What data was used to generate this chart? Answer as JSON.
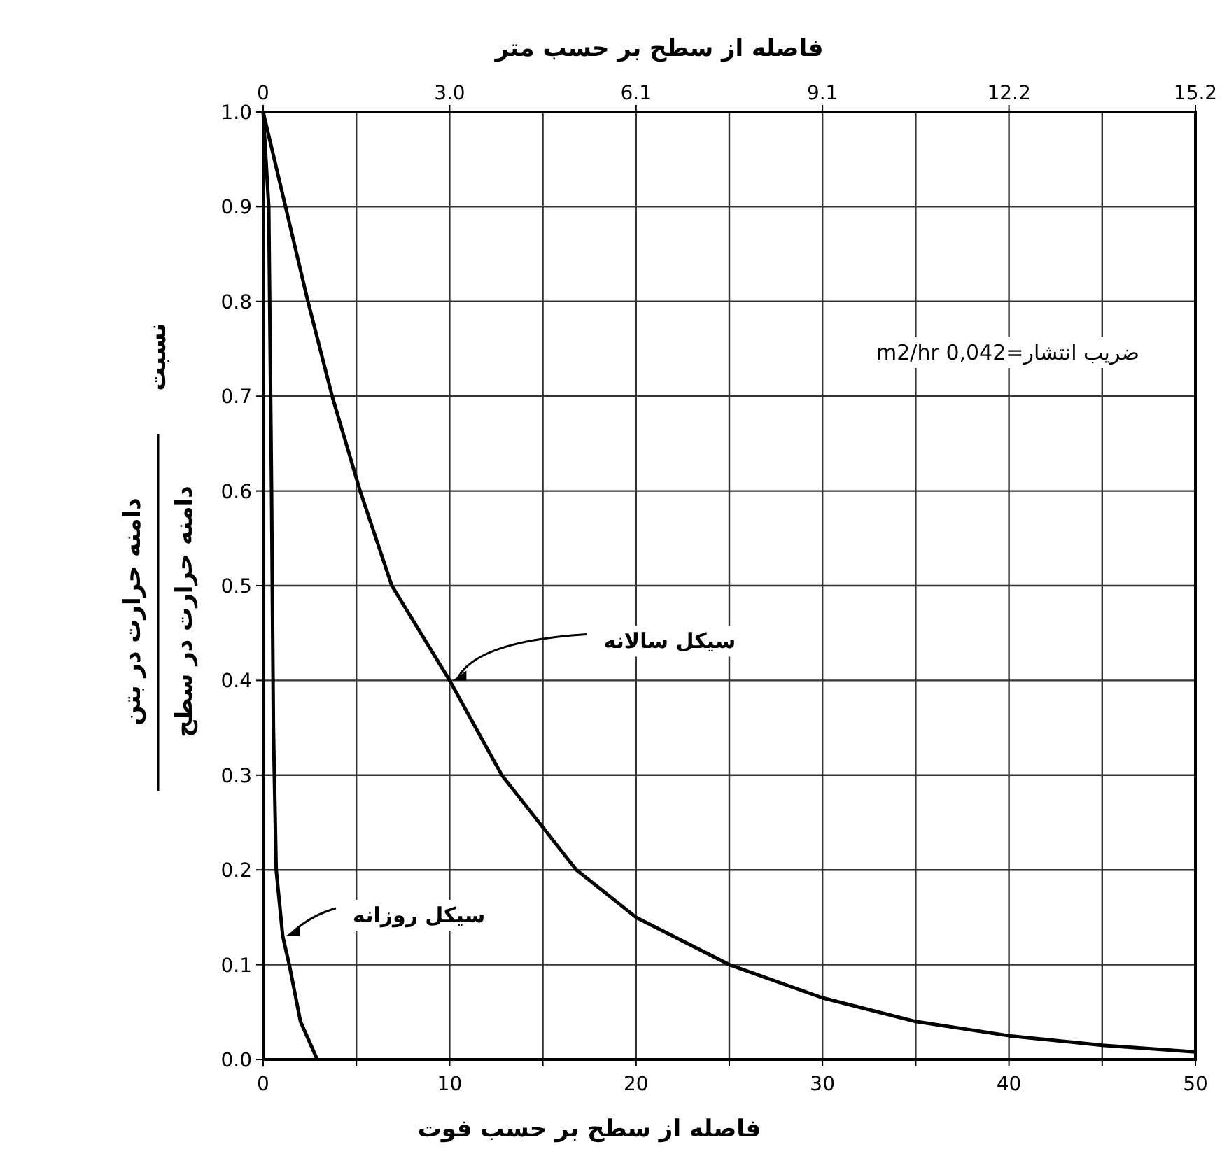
{
  "chart_data": {
    "type": "line",
    "xlabel": "فاصله از سطح بر حسب فوت",
    "x2label": "فاصله از سطح بر حسب متر",
    "ylabel": "نسبت",
    "annotations": [
      "دامنه حرارت در بتن",
      "دامنه حرارت در سطح",
      "ضریب انتشار=0,042 m2/hr",
      {
        "text": "سیکل سالانه",
        "x": 10,
        "y": 0.4
      },
      {
        "text": "سیکل روزانه",
        "x": 1.05,
        "y": 0.13
      }
    ],
    "xlim": [
      0,
      50
    ],
    "ylim": [
      0,
      1
    ],
    "x2lim": [
      0,
      15.24
    ],
    "xticks": [
      0,
      {
        "value": 5,
        "label": null
      },
      10,
      {
        "value": 15,
        "label": null
      },
      20,
      {
        "value": 25,
        "label": null
      },
      30,
      {
        "value": 35,
        "label": null
      },
      40,
      {
        "value": 45,
        "label": null
      },
      50
    ],
    "x2ticks": [
      0,
      {
        "value": 3.048,
        "label": "3.0"
      },
      {
        "value": 6.096,
        "label": "6.1"
      },
      {
        "value": 9.144,
        "label": "9.1"
      },
      {
        "value": 12.192,
        "label": "12.2"
      },
      {
        "value": 15.24,
        "label": "15.2"
      }
    ],
    "yticks": [
      {
        "value": 0,
        "label": "0.0"
      },
      0.1,
      0.2,
      0.3,
      0.4,
      0.5,
      0.6,
      0.7,
      0.8,
      0.9,
      {
        "value": 1,
        "label": "1.0"
      }
    ],
    "grid": true,
    "marker": "none",
    "line_style": "solid",
    "series": [
      {
        "color": "#000000",
        "x": [
          0,
          1.2,
          2.4,
          3.7,
          5.2,
          6.9,
          10,
          12.8,
          16.8,
          20,
          25,
          30,
          35,
          40,
          45,
          50
        ],
        "values": [
          1,
          0.9,
          0.8,
          0.7,
          0.6,
          0.5,
          0.4,
          0.3,
          0.2,
          0.15,
          0.1,
          0.065,
          0.04,
          0.025,
          0.015,
          0.008
        ]
      },
      {
        "color": "#000000",
        "x": [
          0,
          0.3,
          0.45,
          0.55,
          0.7,
          1.05,
          1.4,
          2,
          2.9
        ],
        "values": [
          1,
          0.9,
          0.6,
          0.35,
          0.2,
          0.13,
          0.1,
          0.04,
          0
        ]
      }
    ]
  }
}
